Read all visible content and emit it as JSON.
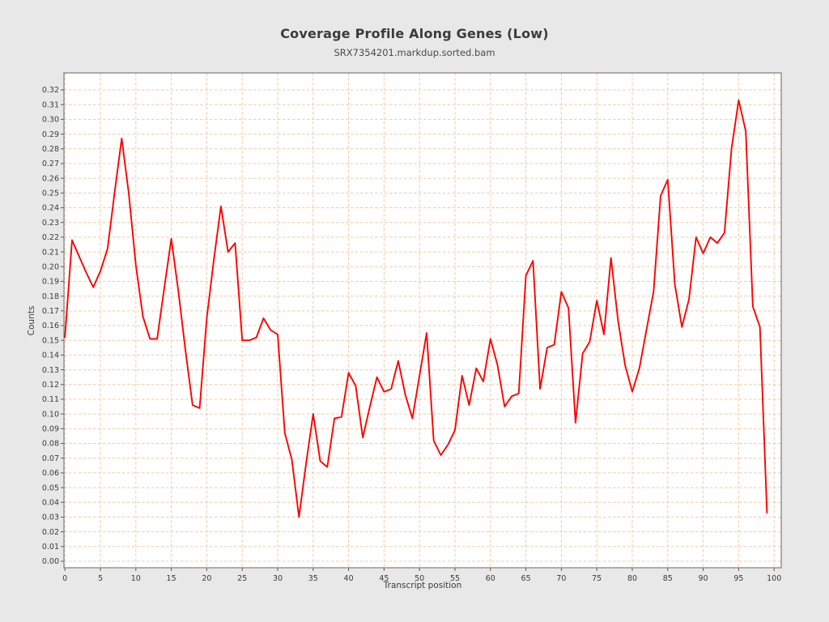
{
  "chart_data": {
    "type": "line",
    "title": "Coverage Profile Along Genes (Low)",
    "subtitle": "SRX7354201.markdup.sorted.bam",
    "xlabel": "Transcript position",
    "ylabel": "Counts",
    "xlim": [
      0,
      100
    ],
    "ylim": [
      0,
      0.32
    ],
    "xtick_step": 5,
    "ytick_step": 0.01,
    "grid": "dashed-both-axes",
    "legend": "none",
    "colors": {
      "line": "#ff0000",
      "gridline": "#f4c9a1",
      "plot_background": "#ffffff",
      "page_background": "#e8e8e8",
      "border": "#7d7d7d",
      "text": "#3b3b3b"
    },
    "x": [
      0,
      1,
      2,
      3,
      4,
      5,
      6,
      7,
      8,
      9,
      10,
      11,
      12,
      13,
      14,
      15,
      16,
      17,
      18,
      19,
      20,
      21,
      22,
      23,
      24,
      25,
      26,
      27,
      28,
      29,
      30,
      31,
      32,
      33,
      34,
      35,
      36,
      37,
      38,
      39,
      40,
      41,
      42,
      43,
      44,
      45,
      46,
      47,
      48,
      49,
      50,
      51,
      52,
      53,
      54,
      55,
      56,
      57,
      58,
      59,
      60,
      61,
      62,
      63,
      64,
      65,
      66,
      67,
      68,
      69,
      70,
      71,
      72,
      73,
      74,
      75,
      76,
      77,
      78,
      79,
      80,
      81,
      82,
      83,
      84,
      85,
      86,
      87,
      88,
      89,
      90,
      91,
      92,
      93,
      94,
      95,
      96,
      97,
      98,
      99
    ],
    "values": [
      0.152,
      0.218,
      0.207,
      0.196,
      0.186,
      0.197,
      0.212,
      0.25,
      0.287,
      0.25,
      0.201,
      0.166,
      0.151,
      0.151,
      0.185,
      0.219,
      0.183,
      0.143,
      0.106,
      0.104,
      0.165,
      0.205,
      0.241,
      0.21,
      0.216,
      0.15,
      0.15,
      0.152,
      0.165,
      0.157,
      0.154,
      0.087,
      0.069,
      0.03,
      0.066,
      0.1,
      0.068,
      0.064,
      0.097,
      0.098,
      0.128,
      0.119,
      0.084,
      0.105,
      0.125,
      0.115,
      0.117,
      0.136,
      0.113,
      0.097,
      0.126,
      0.155,
      0.082,
      0.072,
      0.079,
      0.089,
      0.126,
      0.106,
      0.131,
      0.122,
      0.151,
      0.133,
      0.105,
      0.112,
      0.114,
      0.194,
      0.204,
      0.117,
      0.145,
      0.147,
      0.183,
      0.172,
      0.094,
      0.141,
      0.149,
      0.177,
      0.154,
      0.206,
      0.163,
      0.133,
      0.115,
      0.131,
      0.157,
      0.183,
      0.248,
      0.259,
      0.188,
      0.159,
      0.178,
      0.22,
      0.209,
      0.22,
      0.216,
      0.223,
      0.28,
      0.313,
      0.292,
      0.173,
      0.159,
      0.033
    ]
  }
}
